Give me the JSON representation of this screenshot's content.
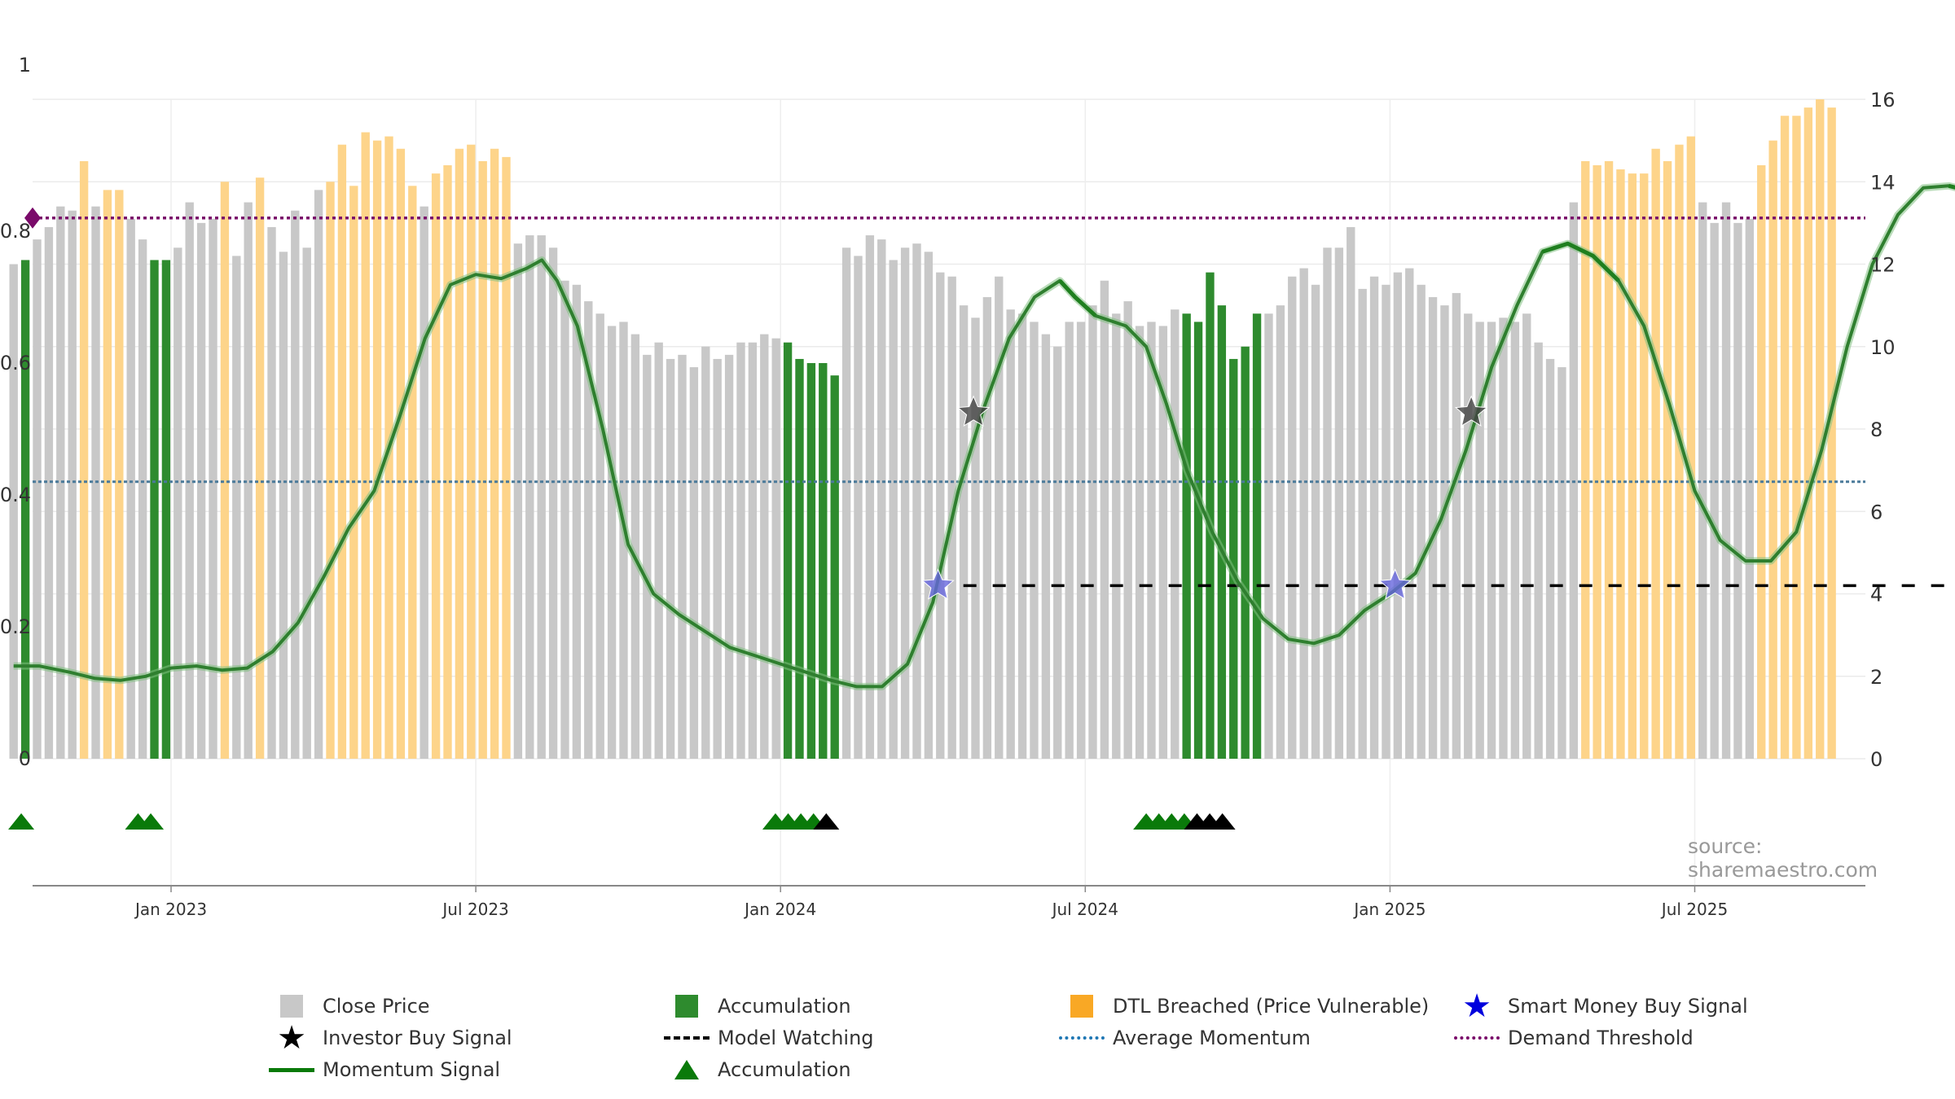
{
  "chart_data": {
    "type": "bar",
    "source_text": "source: sharemaestro.com",
    "x_tick_labels": [
      "Jan 2023",
      "Jul 2023",
      "Jan 2024",
      "Jul 2024",
      "Jan 2025",
      "Jul 2025"
    ],
    "left_y_ticks": [
      "0",
      "0.2",
      "0.4",
      "0.6",
      "0.8",
      "1"
    ],
    "right_y_ticks": [
      "0",
      "2",
      "4",
      "6",
      "8",
      "10",
      "12",
      "14",
      "16"
    ],
    "left_ylim": [
      0,
      1
    ],
    "right_ylim": [
      0,
      16
    ],
    "colors": {
      "close": "#c8c8c8",
      "accumulation": "#2e8b2e",
      "dtl": "#fdd48a",
      "momentum": "#1f7f1f",
      "demand": "#7a0a6a",
      "average": "#4a7a9a",
      "watch": "#000000",
      "smart_star": "#6666dd",
      "investor_star": "#444444",
      "acc_marker": "#0a7a0a"
    },
    "bars_per_month": 4.33,
    "bar_start_offset_months": -3.1,
    "bars": [
      {
        "v": 12.0,
        "s": "close"
      },
      {
        "v": 12.1,
        "s": "acc"
      },
      {
        "v": 12.6,
        "s": "close"
      },
      {
        "v": 12.9,
        "s": "close"
      },
      {
        "v": 13.4,
        "s": "close"
      },
      {
        "v": 13.3,
        "s": "close"
      },
      {
        "v": 14.5,
        "s": "dtl"
      },
      {
        "v": 13.4,
        "s": "close"
      },
      {
        "v": 13.8,
        "s": "dtl"
      },
      {
        "v": 13.8,
        "s": "dtl"
      },
      {
        "v": 13.1,
        "s": "close"
      },
      {
        "v": 12.6,
        "s": "close"
      },
      {
        "v": 12.1,
        "s": "acc"
      },
      {
        "v": 12.1,
        "s": "acc"
      },
      {
        "v": 12.4,
        "s": "close"
      },
      {
        "v": 13.5,
        "s": "close"
      },
      {
        "v": 13.0,
        "s": "close"
      },
      {
        "v": 13.1,
        "s": "close"
      },
      {
        "v": 14.0,
        "s": "dtl"
      },
      {
        "v": 12.2,
        "s": "close"
      },
      {
        "v": 13.5,
        "s": "close"
      },
      {
        "v": 14.1,
        "s": "dtl"
      },
      {
        "v": 12.9,
        "s": "close"
      },
      {
        "v": 12.3,
        "s": "close"
      },
      {
        "v": 13.3,
        "s": "close"
      },
      {
        "v": 12.4,
        "s": "close"
      },
      {
        "v": 13.8,
        "s": "close"
      },
      {
        "v": 14.0,
        "s": "dtl"
      },
      {
        "v": 14.9,
        "s": "dtl"
      },
      {
        "v": 13.9,
        "s": "dtl"
      },
      {
        "v": 15.2,
        "s": "dtl"
      },
      {
        "v": 15.0,
        "s": "dtl"
      },
      {
        "v": 15.1,
        "s": "dtl"
      },
      {
        "v": 14.8,
        "s": "dtl"
      },
      {
        "v": 13.9,
        "s": "dtl"
      },
      {
        "v": 13.4,
        "s": "close"
      },
      {
        "v": 14.2,
        "s": "dtl"
      },
      {
        "v": 14.4,
        "s": "dtl"
      },
      {
        "v": 14.8,
        "s": "dtl"
      },
      {
        "v": 14.9,
        "s": "dtl"
      },
      {
        "v": 14.5,
        "s": "dtl"
      },
      {
        "v": 14.8,
        "s": "dtl"
      },
      {
        "v": 14.6,
        "s": "dtl"
      },
      {
        "v": 12.5,
        "s": "close"
      },
      {
        "v": 12.7,
        "s": "close"
      },
      {
        "v": 12.7,
        "s": "close"
      },
      {
        "v": 12.4,
        "s": "close"
      },
      {
        "v": 11.6,
        "s": "close"
      },
      {
        "v": 11.5,
        "s": "close"
      },
      {
        "v": 11.1,
        "s": "close"
      },
      {
        "v": 10.8,
        "s": "close"
      },
      {
        "v": 10.5,
        "s": "close"
      },
      {
        "v": 10.6,
        "s": "close"
      },
      {
        "v": 10.3,
        "s": "close"
      },
      {
        "v": 9.8,
        "s": "close"
      },
      {
        "v": 10.1,
        "s": "close"
      },
      {
        "v": 9.7,
        "s": "close"
      },
      {
        "v": 9.8,
        "s": "close"
      },
      {
        "v": 9.5,
        "s": "close"
      },
      {
        "v": 10.0,
        "s": "close"
      },
      {
        "v": 9.7,
        "s": "close"
      },
      {
        "v": 9.8,
        "s": "close"
      },
      {
        "v": 10.1,
        "s": "close"
      },
      {
        "v": 10.1,
        "s": "close"
      },
      {
        "v": 10.3,
        "s": "close"
      },
      {
        "v": 10.2,
        "s": "close"
      },
      {
        "v": 10.1,
        "s": "acc"
      },
      {
        "v": 9.7,
        "s": "acc"
      },
      {
        "v": 9.6,
        "s": "acc"
      },
      {
        "v": 9.6,
        "s": "acc"
      },
      {
        "v": 9.3,
        "s": "acc"
      },
      {
        "v": 12.4,
        "s": "close"
      },
      {
        "v": 12.2,
        "s": "close"
      },
      {
        "v": 12.7,
        "s": "close"
      },
      {
        "v": 12.6,
        "s": "close"
      },
      {
        "v": 12.1,
        "s": "close"
      },
      {
        "v": 12.4,
        "s": "close"
      },
      {
        "v": 12.5,
        "s": "close"
      },
      {
        "v": 12.3,
        "s": "close"
      },
      {
        "v": 11.8,
        "s": "close"
      },
      {
        "v": 11.7,
        "s": "close"
      },
      {
        "v": 11.0,
        "s": "close"
      },
      {
        "v": 10.7,
        "s": "close"
      },
      {
        "v": 11.2,
        "s": "close"
      },
      {
        "v": 11.7,
        "s": "close"
      },
      {
        "v": 10.9,
        "s": "close"
      },
      {
        "v": 10.8,
        "s": "close"
      },
      {
        "v": 10.6,
        "s": "close"
      },
      {
        "v": 10.3,
        "s": "close"
      },
      {
        "v": 10.0,
        "s": "close"
      },
      {
        "v": 10.6,
        "s": "close"
      },
      {
        "v": 10.6,
        "s": "close"
      },
      {
        "v": 11.0,
        "s": "close"
      },
      {
        "v": 11.6,
        "s": "close"
      },
      {
        "v": 10.8,
        "s": "close"
      },
      {
        "v": 11.1,
        "s": "close"
      },
      {
        "v": 10.5,
        "s": "close"
      },
      {
        "v": 10.6,
        "s": "close"
      },
      {
        "v": 10.5,
        "s": "close"
      },
      {
        "v": 10.9,
        "s": "close"
      },
      {
        "v": 10.8,
        "s": "acc"
      },
      {
        "v": 10.6,
        "s": "acc"
      },
      {
        "v": 11.8,
        "s": "acc"
      },
      {
        "v": 11.0,
        "s": "acc"
      },
      {
        "v": 9.7,
        "s": "acc"
      },
      {
        "v": 10.0,
        "s": "acc"
      },
      {
        "v": 10.8,
        "s": "acc"
      },
      {
        "v": 10.8,
        "s": "close"
      },
      {
        "v": 11.0,
        "s": "close"
      },
      {
        "v": 11.7,
        "s": "close"
      },
      {
        "v": 11.9,
        "s": "close"
      },
      {
        "v": 11.5,
        "s": "close"
      },
      {
        "v": 12.4,
        "s": "close"
      },
      {
        "v": 12.4,
        "s": "close"
      },
      {
        "v": 12.9,
        "s": "close"
      },
      {
        "v": 11.4,
        "s": "close"
      },
      {
        "v": 11.7,
        "s": "close"
      },
      {
        "v": 11.5,
        "s": "close"
      },
      {
        "v": 11.8,
        "s": "close"
      },
      {
        "v": 11.9,
        "s": "close"
      },
      {
        "v": 11.5,
        "s": "close"
      },
      {
        "v": 11.2,
        "s": "close"
      },
      {
        "v": 11.0,
        "s": "close"
      },
      {
        "v": 11.3,
        "s": "close"
      },
      {
        "v": 10.8,
        "s": "close"
      },
      {
        "v": 10.6,
        "s": "close"
      },
      {
        "v": 10.6,
        "s": "close"
      },
      {
        "v": 10.7,
        "s": "close"
      },
      {
        "v": 10.6,
        "s": "close"
      },
      {
        "v": 10.8,
        "s": "close"
      },
      {
        "v": 10.1,
        "s": "close"
      },
      {
        "v": 9.7,
        "s": "close"
      },
      {
        "v": 9.5,
        "s": "close"
      },
      {
        "v": 13.5,
        "s": "close"
      },
      {
        "v": 14.5,
        "s": "dtl"
      },
      {
        "v": 14.4,
        "s": "dtl"
      },
      {
        "v": 14.5,
        "s": "dtl"
      },
      {
        "v": 14.3,
        "s": "dtl"
      },
      {
        "v": 14.2,
        "s": "dtl"
      },
      {
        "v": 14.2,
        "s": "dtl"
      },
      {
        "v": 14.8,
        "s": "dtl"
      },
      {
        "v": 14.5,
        "s": "dtl"
      },
      {
        "v": 14.9,
        "s": "dtl"
      },
      {
        "v": 15.1,
        "s": "dtl"
      },
      {
        "v": 13.5,
        "s": "close"
      },
      {
        "v": 13.0,
        "s": "close"
      },
      {
        "v": 13.5,
        "s": "close"
      },
      {
        "v": 13.0,
        "s": "close"
      },
      {
        "v": 13.1,
        "s": "close"
      },
      {
        "v": 14.4,
        "s": "dtl"
      },
      {
        "v": 15.0,
        "s": "dtl"
      },
      {
        "v": 15.6,
        "s": "dtl"
      },
      {
        "v": 15.6,
        "s": "dtl"
      },
      {
        "v": 15.8,
        "s": "dtl"
      },
      {
        "v": 16.0,
        "s": "dtl"
      },
      {
        "v": 15.8,
        "s": "dtl"
      }
    ],
    "momentum": [
      [
        -3.1,
        2.25
      ],
      [
        -2.6,
        2.25
      ],
      [
        -2.0,
        2.1
      ],
      [
        -1.5,
        1.95
      ],
      [
        -1.0,
        1.9
      ],
      [
        -0.5,
        2.0
      ],
      [
        0.0,
        2.2
      ],
      [
        0.5,
        2.25
      ],
      [
        1.0,
        2.15
      ],
      [
        1.5,
        2.2
      ],
      [
        2.0,
        2.6
      ],
      [
        2.5,
        3.3
      ],
      [
        3.0,
        4.4
      ],
      [
        3.5,
        5.6
      ],
      [
        4.0,
        6.5
      ],
      [
        4.5,
        8.3
      ],
      [
        5.0,
        10.2
      ],
      [
        5.5,
        11.5
      ],
      [
        6.0,
        11.75
      ],
      [
        6.5,
        11.65
      ],
      [
        7.0,
        11.9
      ],
      [
        7.3,
        12.1
      ],
      [
        7.6,
        11.6
      ],
      [
        8.0,
        10.5
      ],
      [
        8.5,
        8.0
      ],
      [
        9.0,
        5.2
      ],
      [
        9.5,
        4.0
      ],
      [
        10.0,
        3.5
      ],
      [
        10.5,
        3.1
      ],
      [
        11.0,
        2.7
      ],
      [
        11.5,
        2.5
      ],
      [
        12.0,
        2.3
      ],
      [
        12.5,
        2.1
      ],
      [
        13.0,
        1.9
      ],
      [
        13.5,
        1.75
      ],
      [
        14.0,
        1.75
      ],
      [
        14.5,
        2.3
      ],
      [
        15.0,
        3.8
      ],
      [
        15.5,
        6.5
      ],
      [
        16.0,
        8.5
      ],
      [
        16.5,
        10.2
      ],
      [
        17.0,
        11.2
      ],
      [
        17.5,
        11.6
      ],
      [
        17.8,
        11.2
      ],
      [
        18.2,
        10.75
      ],
      [
        18.8,
        10.5
      ],
      [
        19.2,
        10.0
      ],
      [
        19.6,
        8.6
      ],
      [
        20.0,
        7.0
      ],
      [
        20.5,
        5.5
      ],
      [
        21.0,
        4.3
      ],
      [
        21.5,
        3.4
      ],
      [
        22.0,
        2.9
      ],
      [
        22.5,
        2.8
      ],
      [
        23.0,
        3.0
      ],
      [
        23.5,
        3.6
      ],
      [
        24.0,
        4.0
      ],
      [
        24.5,
        4.5
      ],
      [
        25.0,
        5.8
      ],
      [
        25.5,
        7.5
      ],
      [
        26.0,
        9.5
      ],
      [
        26.5,
        11.0
      ],
      [
        27.0,
        12.3
      ],
      [
        27.5,
        12.5
      ],
      [
        28.0,
        12.2
      ],
      [
        28.5,
        11.6
      ],
      [
        29.0,
        10.5
      ],
      [
        29.5,
        8.6
      ],
      [
        30.0,
        6.5
      ],
      [
        30.5,
        5.3
      ],
      [
        31.0,
        4.8
      ],
      [
        31.5,
        4.8
      ],
      [
        32.0,
        5.5
      ],
      [
        32.5,
        7.5
      ],
      [
        33.0,
        10.0
      ],
      [
        33.5,
        12.0
      ],
      [
        34.0,
        13.2
      ],
      [
        34.5,
        13.85
      ],
      [
        35.0,
        13.9
      ],
      [
        35.5,
        13.75
      ],
      [
        36.0,
        13.55
      ],
      [
        36.5,
        13.4
      ],
      [
        37.0,
        13.2
      ],
      [
        37.5,
        13.25
      ],
      [
        38.0,
        13.0
      ],
      [
        38.5,
        13.3
      ]
    ],
    "momentum_bright_segments": [
      [
        17.1,
        18.4
      ],
      [
        26.9,
        28.8
      ],
      [
        34.9,
        38.5
      ]
    ],
    "demand_threshold": 0.82,
    "average_momentum": 0.42,
    "model_watching": {
      "x_start": 15.6,
      "x_end": 38.6,
      "y": 4.2
    },
    "smart_money_buy": [
      {
        "x": 15.1,
        "y": 4.2
      },
      {
        "x": 24.1,
        "y": 4.2
      }
    ],
    "investor_buy": [
      {
        "x": 15.8,
        "y": 8.4
      },
      {
        "x": 25.6,
        "y": 8.4
      }
    ],
    "accumulation_markers": [
      {
        "x": -2.95,
        "c": "green"
      },
      {
        "x": -0.65,
        "c": "green"
      },
      {
        "x": -0.4,
        "c": "green"
      },
      {
        "x": 11.9,
        "c": "green"
      },
      {
        "x": 12.15,
        "c": "green"
      },
      {
        "x": 12.4,
        "c": "green"
      },
      {
        "x": 12.65,
        "c": "green"
      },
      {
        "x": 12.9,
        "c": "black"
      },
      {
        "x": 19.2,
        "c": "green"
      },
      {
        "x": 19.45,
        "c": "green"
      },
      {
        "x": 19.7,
        "c": "green"
      },
      {
        "x": 19.95,
        "c": "green"
      },
      {
        "x": 20.2,
        "c": "black"
      },
      {
        "x": 20.45,
        "c": "black"
      },
      {
        "x": 20.7,
        "c": "black"
      }
    ],
    "legend": {
      "close_price": "Close Price",
      "accumulation": "Accumulation",
      "dtl": "DTL Breached (Price Vulnerable)",
      "smart_money": "Smart Money Buy Signal",
      "investor_buy": "Investor Buy Signal",
      "model_watching": "Model Watching",
      "average_momentum": "Average Momentum",
      "demand_threshold": "Demand Threshold",
      "momentum_signal": "Momentum Signal",
      "accumulation_markers": "Accumulation"
    }
  }
}
